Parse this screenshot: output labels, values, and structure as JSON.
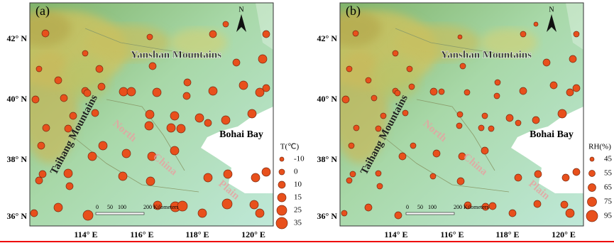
{
  "panels": [
    {
      "label": "(a)",
      "legend": {
        "title": "T(℃)",
        "items": [
          "-10",
          "0",
          "10",
          "15",
          "25",
          "35"
        ]
      }
    },
    {
      "label": "(b)",
      "legend": {
        "title": "RH(%)",
        "items": [
          "45",
          "55",
          "65",
          "75",
          "95"
        ]
      }
    }
  ],
  "xticks": [
    "114° E",
    "116° E",
    "118° E",
    "120° E"
  ],
  "yticks": [
    "42° N",
    "40° N",
    "38° N",
    "36° N"
  ],
  "mountains_north": "Yanshan Mountains",
  "mountains_west": "Taihang Mountains",
  "plain": [
    "North",
    "China",
    "Plain"
  ],
  "bay": "Bohai Bay",
  "north": "N",
  "scale": [
    "0",
    "50",
    "100",
    "200 Kilometers"
  ]
}
